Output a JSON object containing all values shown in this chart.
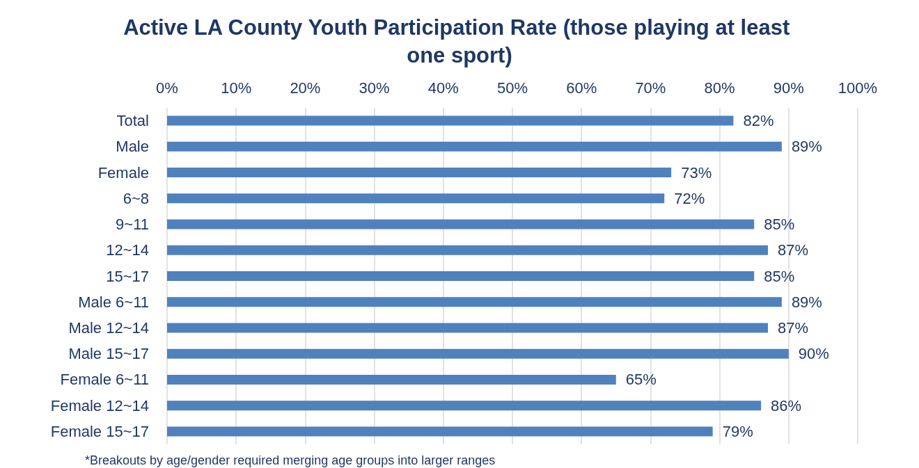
{
  "chart_data": {
    "type": "bar",
    "orientation": "horizontal",
    "title": "Active LA County Youth Participation Rate (those playing at least one sport)",
    "categories": [
      "Total",
      "Male",
      "Female",
      "6~8",
      "9~11",
      "12~14",
      "15~17",
      "Male 6~11",
      "Male 12~14",
      "Male 15~17",
      "Female 6~11",
      "Female 12~14",
      "Female 15~17"
    ],
    "values": [
      82,
      89,
      73,
      72,
      85,
      87,
      85,
      89,
      87,
      90,
      65,
      86,
      79
    ],
    "value_labels": [
      "82%",
      "89%",
      "73%",
      "72%",
      "85%",
      "87%",
      "85%",
      "89%",
      "87%",
      "90%",
      "65%",
      "86%",
      "79%"
    ],
    "color": "#4f81bd",
    "xlim": [
      0,
      100
    ],
    "xticks": [
      {
        "value": 0,
        "label": "0%"
      },
      {
        "value": 10,
        "label": "10%"
      },
      {
        "value": 20,
        "label": "20%"
      },
      {
        "value": 30,
        "label": "30%"
      },
      {
        "value": 40,
        "label": "40%"
      },
      {
        "value": 50,
        "label": "50%"
      },
      {
        "value": 60,
        "label": "60%"
      },
      {
        "value": 70,
        "label": "70%"
      },
      {
        "value": 80,
        "label": "80%"
      },
      {
        "value": 90,
        "label": "90%"
      },
      {
        "value": 100,
        "label": "100%"
      }
    ],
    "grid": "x",
    "annotations": [
      "*Breakouts by age/gender required merging age groups into larger ranges"
    ]
  }
}
